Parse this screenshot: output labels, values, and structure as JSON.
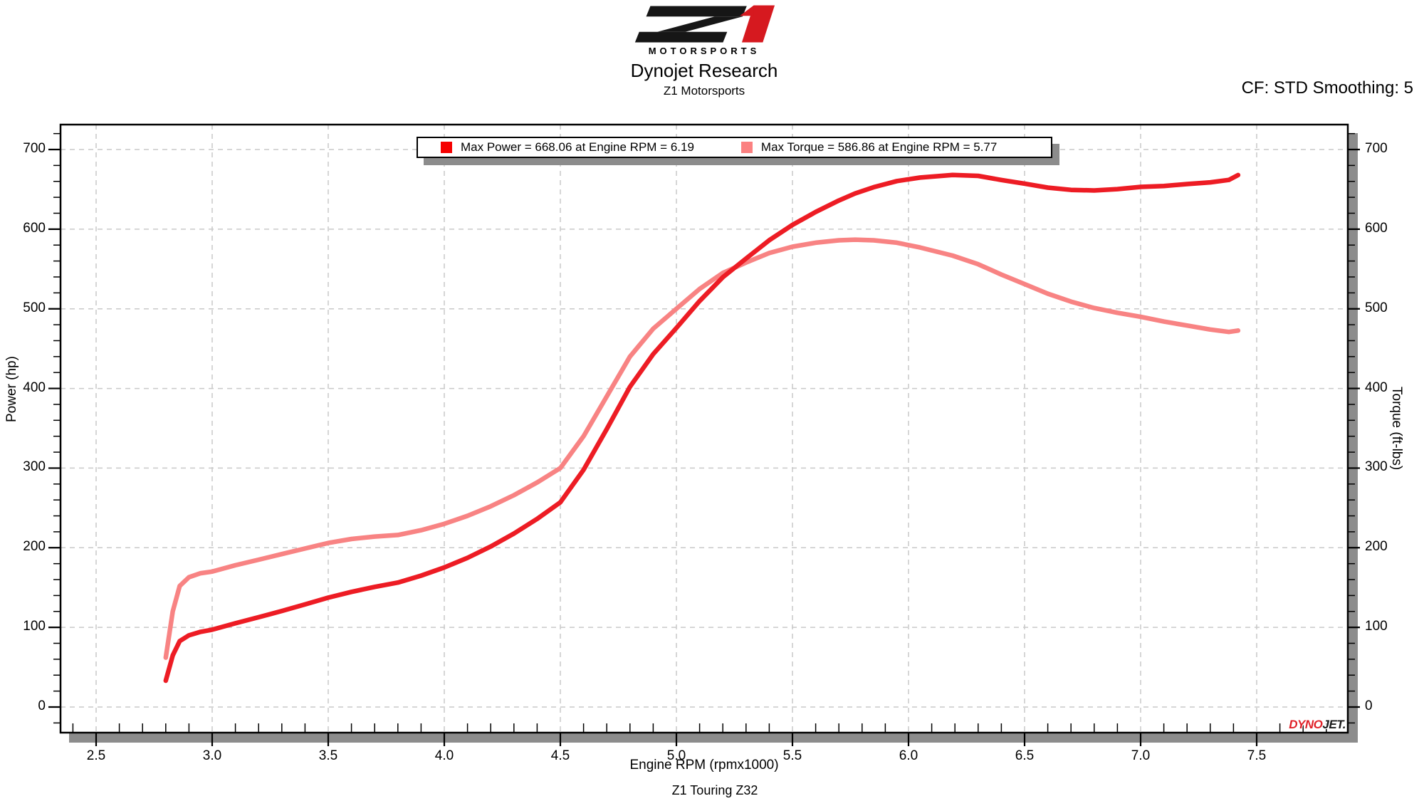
{
  "header": {
    "logo_wordmark": "MOTORSPORTS",
    "logo_black": "#161616",
    "logo_red": "#d6191f",
    "title": "Dynojet Research",
    "subtitle": "Z1 Motorsports",
    "correction": "CF: STD Smoothing: 5"
  },
  "legend": {
    "items": [
      {
        "label": "Max Power = 668.06 at Engine RPM = 6.19",
        "color": "#f50000"
      },
      {
        "label": "Max Torque = 586.86 at Engine RPM = 5.77",
        "color": "#fb8181"
      }
    ]
  },
  "axes": {
    "x": {
      "label": "Engine RPM (rpmx1000)",
      "major_start": 2.5,
      "major_end": 7.5,
      "major_step": 0.5,
      "minor_step": 0.1,
      "minor_start": 2.4,
      "minor_end": 7.8
    },
    "y_left": {
      "label": "Power (hp)",
      "major_start": 0,
      "major_end": 700,
      "major_step": 100,
      "minor_step": 20,
      "minor_start": -20,
      "minor_end": 720
    },
    "y_right": {
      "label": "Torque (ft-lbs)"
    }
  },
  "footer": {
    "note": "Z1 Touring Z32"
  },
  "watermark": {
    "part1": "DYNO",
    "part2": "JET."
  },
  "colors": {
    "power_curve": "#ed1c24",
    "torque_curve": "#f88383",
    "grid": "#c9c9c9",
    "frame": "#000000",
    "shadow": "#8c8c8c",
    "dynojet_red": "#e02128",
    "dynojet_dark": "#1a1a1a"
  },
  "chart_data": {
    "type": "line",
    "title": "Dynojet Research",
    "subtitle": "Z1 Motorsports",
    "xlabel": "Engine RPM (rpmx1000)",
    "ylabel_left": "Power (hp)",
    "ylabel_right": "Torque (ft-lbs)",
    "xlim": [
      2.35,
      7.89
    ],
    "ylim": [
      -32,
      731
    ],
    "grid": true,
    "legend_position": "top-center",
    "x": [
      2.8,
      2.83,
      2.86,
      2.9,
      2.95,
      3.0,
      3.1,
      3.2,
      3.3,
      3.4,
      3.5,
      3.6,
      3.7,
      3.8,
      3.9,
      4.0,
      4.1,
      4.2,
      4.3,
      4.4,
      4.5,
      4.6,
      4.7,
      4.8,
      4.9,
      5.0,
      5.1,
      5.2,
      5.3,
      5.4,
      5.5,
      5.6,
      5.7,
      5.77,
      5.85,
      5.95,
      6.05,
      6.19,
      6.3,
      6.4,
      6.5,
      6.6,
      6.7,
      6.8,
      6.9,
      7.0,
      7.1,
      7.2,
      7.3,
      7.38,
      7.42
    ],
    "series": [
      {
        "name": "Power (hp)",
        "axis": "left",
        "color": "#ed1c24",
        "max": {
          "value": 668.06,
          "rpm": 6.19
        },
        "values": [
          33.1,
          64.7,
          82.8,
          90.0,
          94.4,
          97.1,
          105.1,
          112.7,
          120.6,
          128.8,
          137.3,
          144.6,
          150.8,
          156.3,
          164.9,
          175.2,
          187.3,
          201.5,
          217.8,
          236.2,
          257.0,
          297.8,
          349.0,
          402.1,
          443.1,
          476.0,
          509.8,
          539.6,
          563.1,
          586.1,
          605.3,
          621.6,
          636.0,
          644.8,
          652.7,
          660.4,
          664.8,
          668.06,
          666.9,
          661.7,
          657.2,
          652.2,
          649.3,
          648.6,
          650.3,
          653.1,
          654.2,
          656.6,
          658.8,
          661.8,
          667.9
        ]
      },
      {
        "name": "Torque (ft-lbs)",
        "axis": "right",
        "color": "#f88383",
        "max": {
          "value": 586.86,
          "rpm": 5.77
        },
        "values": [
          62,
          120,
          152,
          163,
          168,
          170,
          178,
          185,
          192,
          199,
          206,
          211,
          214,
          216,
          222,
          230,
          240,
          252,
          266,
          282,
          300,
          340,
          390,
          440,
          475,
          500,
          525,
          545,
          558,
          570,
          578,
          583,
          586,
          586.86,
          586,
          583,
          577,
          566.8,
          556,
          543,
          531,
          519,
          509,
          501,
          495,
          490,
          484,
          479,
          474,
          471,
          472.7
        ]
      }
    ]
  }
}
